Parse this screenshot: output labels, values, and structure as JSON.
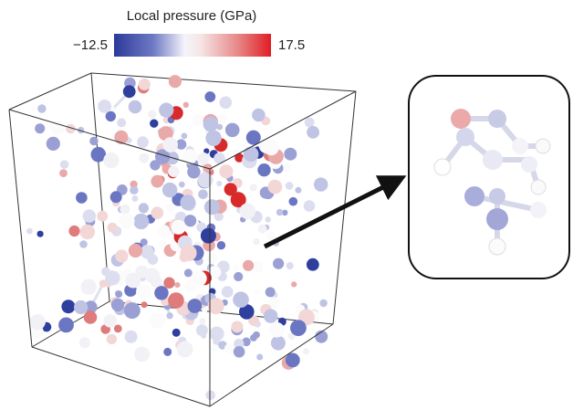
{
  "colorbar": {
    "label": "Local pressure (GPa)",
    "min_label": "−12.5",
    "max_label": "17.5"
  }
}
